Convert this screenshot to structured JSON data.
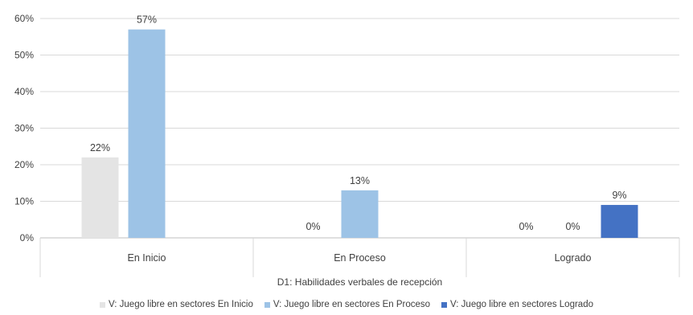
{
  "chart_data": {
    "type": "bar",
    "xlabel": "D1: Habilidades verbales de recepción",
    "ylabel": "",
    "ylim": [
      0,
      60
    ],
    "yticks": [
      "0%",
      "10%",
      "20%",
      "30%",
      "40%",
      "50%",
      "60%"
    ],
    "ytick_values": [
      0,
      10,
      20,
      30,
      40,
      50,
      60
    ],
    "categories": [
      "En Inicio",
      "En Proceso",
      "Logrado"
    ],
    "series": [
      {
        "name": "V: Juego libre en sectores En Inicio",
        "color": "#e4e4e4",
        "values": [
          22,
          0,
          0
        ],
        "labels": [
          "22%",
          "0%",
          "0%"
        ]
      },
      {
        "name": "V: Juego libre en sectores En Proceso",
        "color": "#9dc3e6",
        "values": [
          57,
          13,
          0
        ],
        "labels": [
          "57%",
          "13%",
          "0%"
        ]
      },
      {
        "name": "V: Juego libre en sectores Logrado",
        "color": "#4472c4",
        "values": [
          0,
          0,
          9
        ],
        "labels": [
          "",
          "",
          "9%"
        ]
      }
    ],
    "legend_position": "bottom",
    "grid": true
  }
}
